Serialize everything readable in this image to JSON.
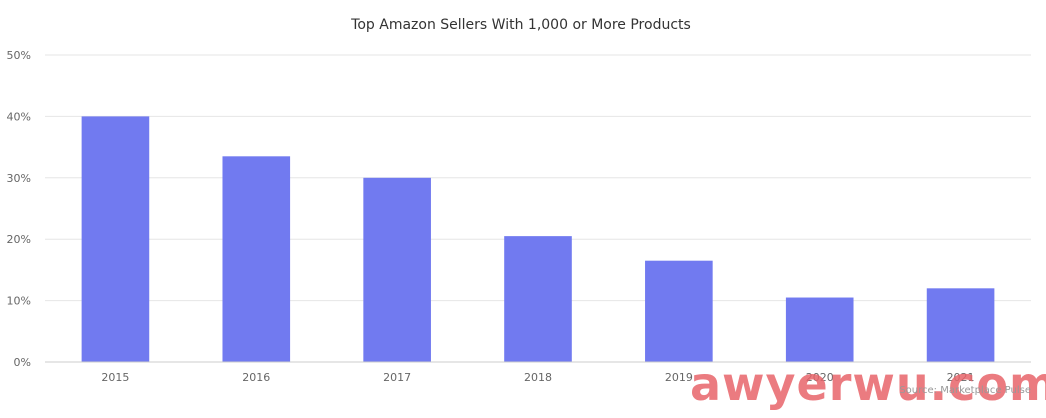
{
  "chart_data": {
    "type": "bar",
    "title": "Top Amazon Sellers With 1,000 or More Products",
    "xlabel": "",
    "ylabel": "",
    "categories": [
      "2015",
      "2016",
      "2017",
      "2018",
      "2019",
      "2020",
      "2021"
    ],
    "values": [
      40,
      33.5,
      30,
      20.5,
      16.5,
      10.5,
      12
    ],
    "ylim": [
      0,
      50
    ],
    "yticks": [
      0,
      10,
      20,
      30,
      40,
      50
    ],
    "ytick_labels": [
      "0%",
      "10%",
      "20%",
      "30%",
      "40%",
      "50%"
    ],
    "grid": true,
    "legend": "none",
    "bar_color": "#717af0",
    "credits": "Source: Marketplace Pulse"
  },
  "watermark": "awyerwu.com"
}
